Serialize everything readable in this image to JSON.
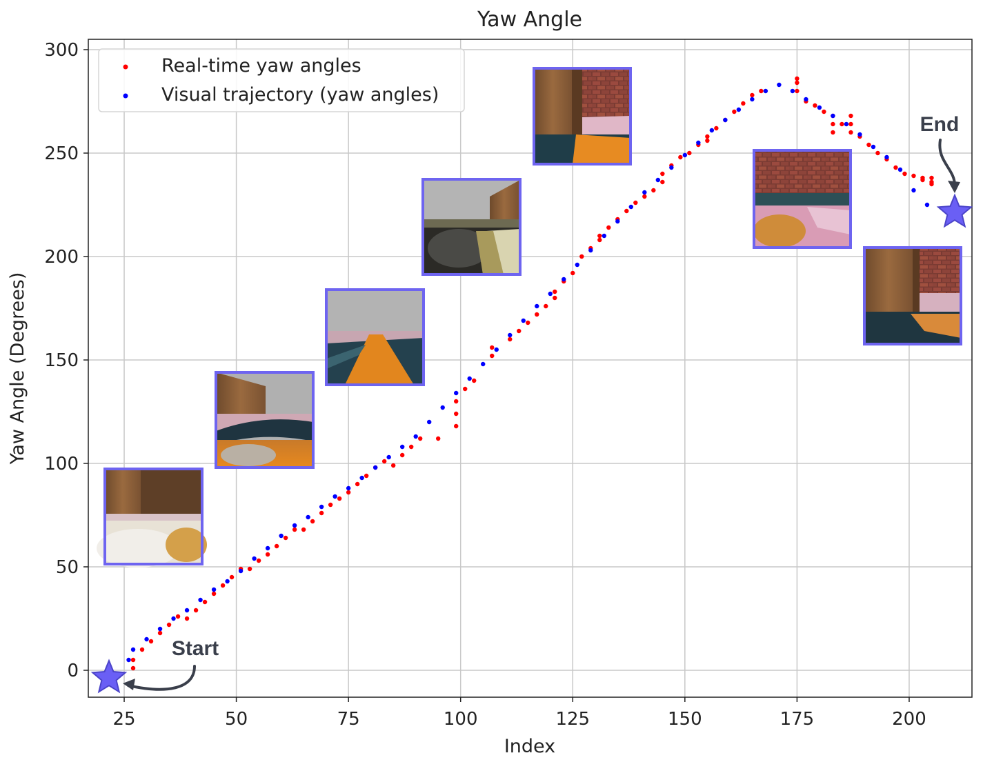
{
  "chart_data": {
    "type": "scatter",
    "title": "Yaw Angle",
    "xlabel": "Index",
    "ylabel": "Yaw Angle (Degrees)",
    "xlim": [
      17,
      214
    ],
    "ylim": [
      -13,
      305
    ],
    "xticks": [
      25,
      50,
      75,
      100,
      125,
      150,
      175,
      200
    ],
    "yticks": [
      0,
      50,
      100,
      150,
      200,
      250,
      300
    ],
    "grid": true,
    "legend_position": "top-left",
    "series": [
      {
        "name": "Real-time yaw angles",
        "color": "#ff0000",
        "points": [
          [
            27,
            1
          ],
          [
            27,
            5
          ],
          [
            29,
            10
          ],
          [
            31,
            14
          ],
          [
            33,
            18
          ],
          [
            35,
            22
          ],
          [
            37,
            26
          ],
          [
            39,
            25
          ],
          [
            41,
            29
          ],
          [
            43,
            33
          ],
          [
            45,
            37
          ],
          [
            47,
            41
          ],
          [
            49,
            45
          ],
          [
            51,
            49
          ],
          [
            53,
            49
          ],
          [
            55,
            53
          ],
          [
            57,
            56
          ],
          [
            59,
            60
          ],
          [
            61,
            64
          ],
          [
            63,
            68
          ],
          [
            65,
            68
          ],
          [
            67,
            72
          ],
          [
            69,
            76
          ],
          [
            71,
            80
          ],
          [
            73,
            83
          ],
          [
            75,
            86
          ],
          [
            77,
            90
          ],
          [
            79,
            94
          ],
          [
            81,
            98
          ],
          [
            83,
            101
          ],
          [
            85,
            99
          ],
          [
            87,
            104
          ],
          [
            89,
            108
          ],
          [
            91,
            112
          ],
          [
            95,
            112
          ],
          [
            99,
            118
          ],
          [
            99,
            124
          ],
          [
            99,
            130
          ],
          [
            101,
            136
          ],
          [
            103,
            140
          ],
          [
            107,
            152
          ],
          [
            107,
            156
          ],
          [
            111,
            160
          ],
          [
            113,
            164
          ],
          [
            115,
            168
          ],
          [
            117,
            172
          ],
          [
            119,
            176
          ],
          [
            121,
            180
          ],
          [
            121,
            183
          ],
          [
            123,
            188
          ],
          [
            125,
            192
          ],
          [
            127,
            200
          ],
          [
            129,
            204
          ],
          [
            131,
            208
          ],
          [
            131,
            210
          ],
          [
            133,
            214
          ],
          [
            135,
            218
          ],
          [
            137,
            222
          ],
          [
            139,
            226
          ],
          [
            141,
            229
          ],
          [
            143,
            232
          ],
          [
            145,
            236
          ],
          [
            145,
            240
          ],
          [
            147,
            244
          ],
          [
            149,
            248
          ],
          [
            151,
            250
          ],
          [
            153,
            254
          ],
          [
            155,
            256
          ],
          [
            155,
            258
          ],
          [
            157,
            262
          ],
          [
            159,
            266
          ],
          [
            161,
            270
          ],
          [
            163,
            274
          ],
          [
            165,
            278
          ],
          [
            167,
            280
          ],
          [
            175,
            280
          ],
          [
            175,
            284
          ],
          [
            175,
            286
          ],
          [
            177,
            275
          ],
          [
            179,
            273
          ],
          [
            181,
            270
          ],
          [
            183,
            268
          ],
          [
            183,
            264
          ],
          [
            183,
            260
          ],
          [
            185,
            264
          ],
          [
            187,
            268
          ],
          [
            187,
            264
          ],
          [
            187,
            260
          ],
          [
            189,
            258
          ],
          [
            191,
            254
          ],
          [
            193,
            250
          ],
          [
            195,
            247
          ],
          [
            197,
            243
          ],
          [
            199,
            240
          ],
          [
            201,
            239
          ],
          [
            203,
            238
          ],
          [
            203,
            237
          ],
          [
            205,
            236
          ],
          [
            205,
            238
          ],
          [
            205,
            235
          ]
        ]
      },
      {
        "name": "Visual trajectory (yaw angles)",
        "color": "#0000ff",
        "points": [
          [
            26,
            5
          ],
          [
            27,
            10
          ],
          [
            30,
            15
          ],
          [
            33,
            20
          ],
          [
            36,
            25
          ],
          [
            39,
            29
          ],
          [
            42,
            34
          ],
          [
            45,
            39
          ],
          [
            48,
            43
          ],
          [
            51,
            48
          ],
          [
            54,
            54
          ],
          [
            57,
            59
          ],
          [
            60,
            65
          ],
          [
            63,
            70
          ],
          [
            66,
            74
          ],
          [
            69,
            79
          ],
          [
            72,
            84
          ],
          [
            75,
            88
          ],
          [
            78,
            93
          ],
          [
            81,
            98
          ],
          [
            84,
            103
          ],
          [
            87,
            108
          ],
          [
            90,
            113
          ],
          [
            93,
            120
          ],
          [
            96,
            127
          ],
          [
            99,
            134
          ],
          [
            102,
            141
          ],
          [
            105,
            148
          ],
          [
            108,
            155
          ],
          [
            111,
            162
          ],
          [
            114,
            169
          ],
          [
            117,
            176
          ],
          [
            120,
            182
          ],
          [
            123,
            189
          ],
          [
            126,
            196
          ],
          [
            129,
            203
          ],
          [
            132,
            210
          ],
          [
            135,
            217
          ],
          [
            138,
            224
          ],
          [
            141,
            231
          ],
          [
            144,
            237
          ],
          [
            147,
            243
          ],
          [
            150,
            249
          ],
          [
            153,
            255
          ],
          [
            156,
            261
          ],
          [
            159,
            266
          ],
          [
            162,
            271
          ],
          [
            165,
            276
          ],
          [
            168,
            280
          ],
          [
            171,
            283
          ],
          [
            174,
            280
          ],
          [
            177,
            276
          ],
          [
            180,
            272
          ],
          [
            183,
            268
          ],
          [
            186,
            264
          ],
          [
            189,
            259
          ],
          [
            192,
            253
          ],
          [
            195,
            248
          ],
          [
            198,
            242
          ],
          [
            201,
            232
          ],
          [
            204,
            225
          ]
        ]
      }
    ],
    "annotations": [
      {
        "text": "Start",
        "x": 22,
        "y": -4
      },
      {
        "text": "End",
        "x": 210,
        "y": 218
      }
    ],
    "thumbnails": [
      {
        "name": "thumb-1",
        "scene": "wall-floor-bright"
      },
      {
        "name": "thumb-2",
        "scene": "box-sky-orange"
      },
      {
        "name": "thumb-3",
        "scene": "sky-road-orange"
      },
      {
        "name": "thumb-4",
        "scene": "sky-box-dark"
      },
      {
        "name": "thumb-5",
        "scene": "box-brick-orange"
      },
      {
        "name": "thumb-6",
        "scene": "brick-pink"
      },
      {
        "name": "thumb-7",
        "scene": "box-brick-dark"
      }
    ]
  }
}
